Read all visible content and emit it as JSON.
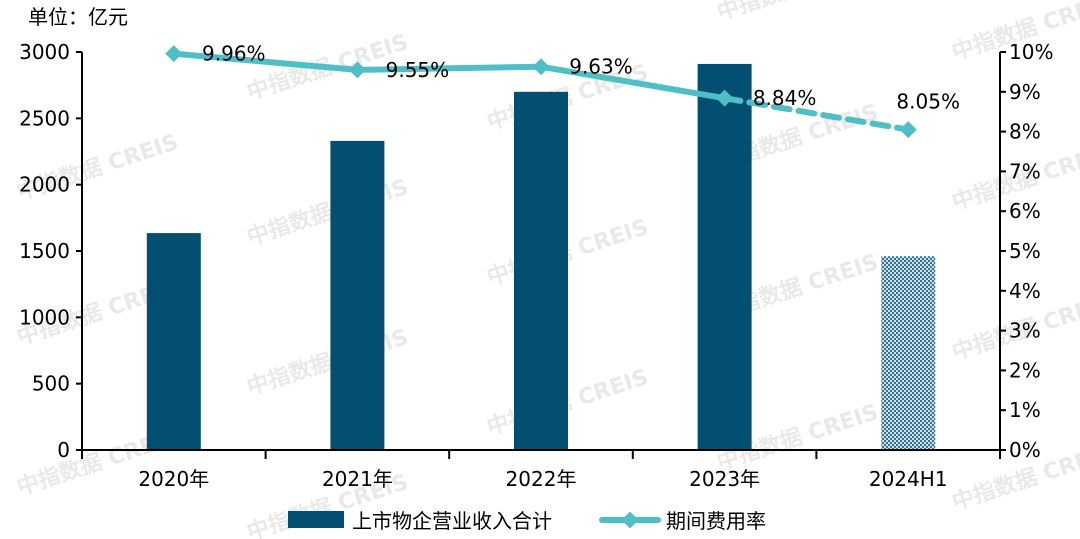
{
  "chart_data": {
    "type": "bar+line",
    "title": "",
    "unit_label": "单位：亿元",
    "categories": [
      "2020年",
      "2021年",
      "2022年",
      "2023年",
      "2024H1"
    ],
    "series": [
      {
        "name": "上市物企营业收入合计",
        "type": "bar",
        "axis": "left",
        "color": "#024f71",
        "values": [
          1635,
          2330,
          2700,
          2910,
          1460
        ],
        "patterned_last": true
      },
      {
        "name": "期间费用率",
        "type": "line",
        "axis": "right",
        "color": "#4fbfc6",
        "unit": "%",
        "values": [
          9.96,
          9.55,
          9.63,
          8.84,
          8.05
        ],
        "labels": [
          "9.96%",
          "9.55%",
          "9.63%",
          "8.84%",
          "8.05%"
        ],
        "dashed_last_segment": true
      }
    ],
    "ylim": [
      0,
      3000
    ],
    "yticks": [
      "0",
      "500",
      "1000",
      "1500",
      "2000",
      "2500",
      "3000"
    ],
    "y2lim": [
      0,
      10
    ],
    "y2ticks": [
      "0%",
      "1%",
      "2%",
      "3%",
      "4%",
      "5%",
      "6%",
      "7%",
      "8%",
      "9%",
      "10%"
    ],
    "legend": {
      "position": "bottom",
      "items": [
        "上市物企营业收入合计",
        "期间费用率"
      ]
    },
    "grid": false
  },
  "watermark": {
    "cn": "中指数据",
    "en": "CREIS"
  }
}
